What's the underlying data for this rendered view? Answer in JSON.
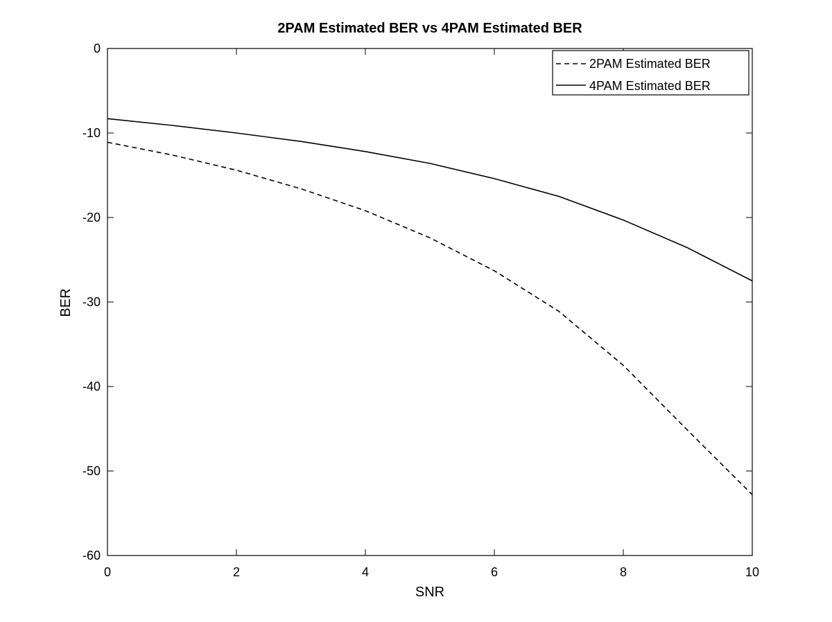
{
  "chart_data": {
    "type": "line",
    "title": "2PAM Estimated BER vs 4PAM Estimated BER",
    "xlabel": "SNR",
    "ylabel": "BER",
    "xlim": [
      0,
      10
    ],
    "ylim": [
      -60,
      0
    ],
    "x_ticks": [
      0,
      2,
      4,
      6,
      8,
      10
    ],
    "y_ticks": [
      0,
      -10,
      -20,
      -30,
      -40,
      -50,
      -60
    ],
    "grid": false,
    "legend_position": "top-right",
    "x": [
      0,
      1,
      2,
      3,
      4,
      5,
      6,
      7,
      8,
      9,
      10
    ],
    "series": [
      {
        "name": "2PAM Estimated BER",
        "line_style": "dashed",
        "color": "#000000",
        "values": [
          -11.1,
          -12.6,
          -14.4,
          -16.6,
          -19.2,
          -22.4,
          -26.3,
          -31.1,
          -37.5,
          -45.2,
          -52.8
        ]
      },
      {
        "name": "4PAM Estimated BER",
        "line_style": "solid",
        "color": "#000000",
        "values": [
          -8.3,
          -9.1,
          -10.0,
          -11.0,
          -12.2,
          -13.6,
          -15.4,
          -17.5,
          -20.3,
          -23.6,
          -27.5
        ]
      }
    ]
  }
}
